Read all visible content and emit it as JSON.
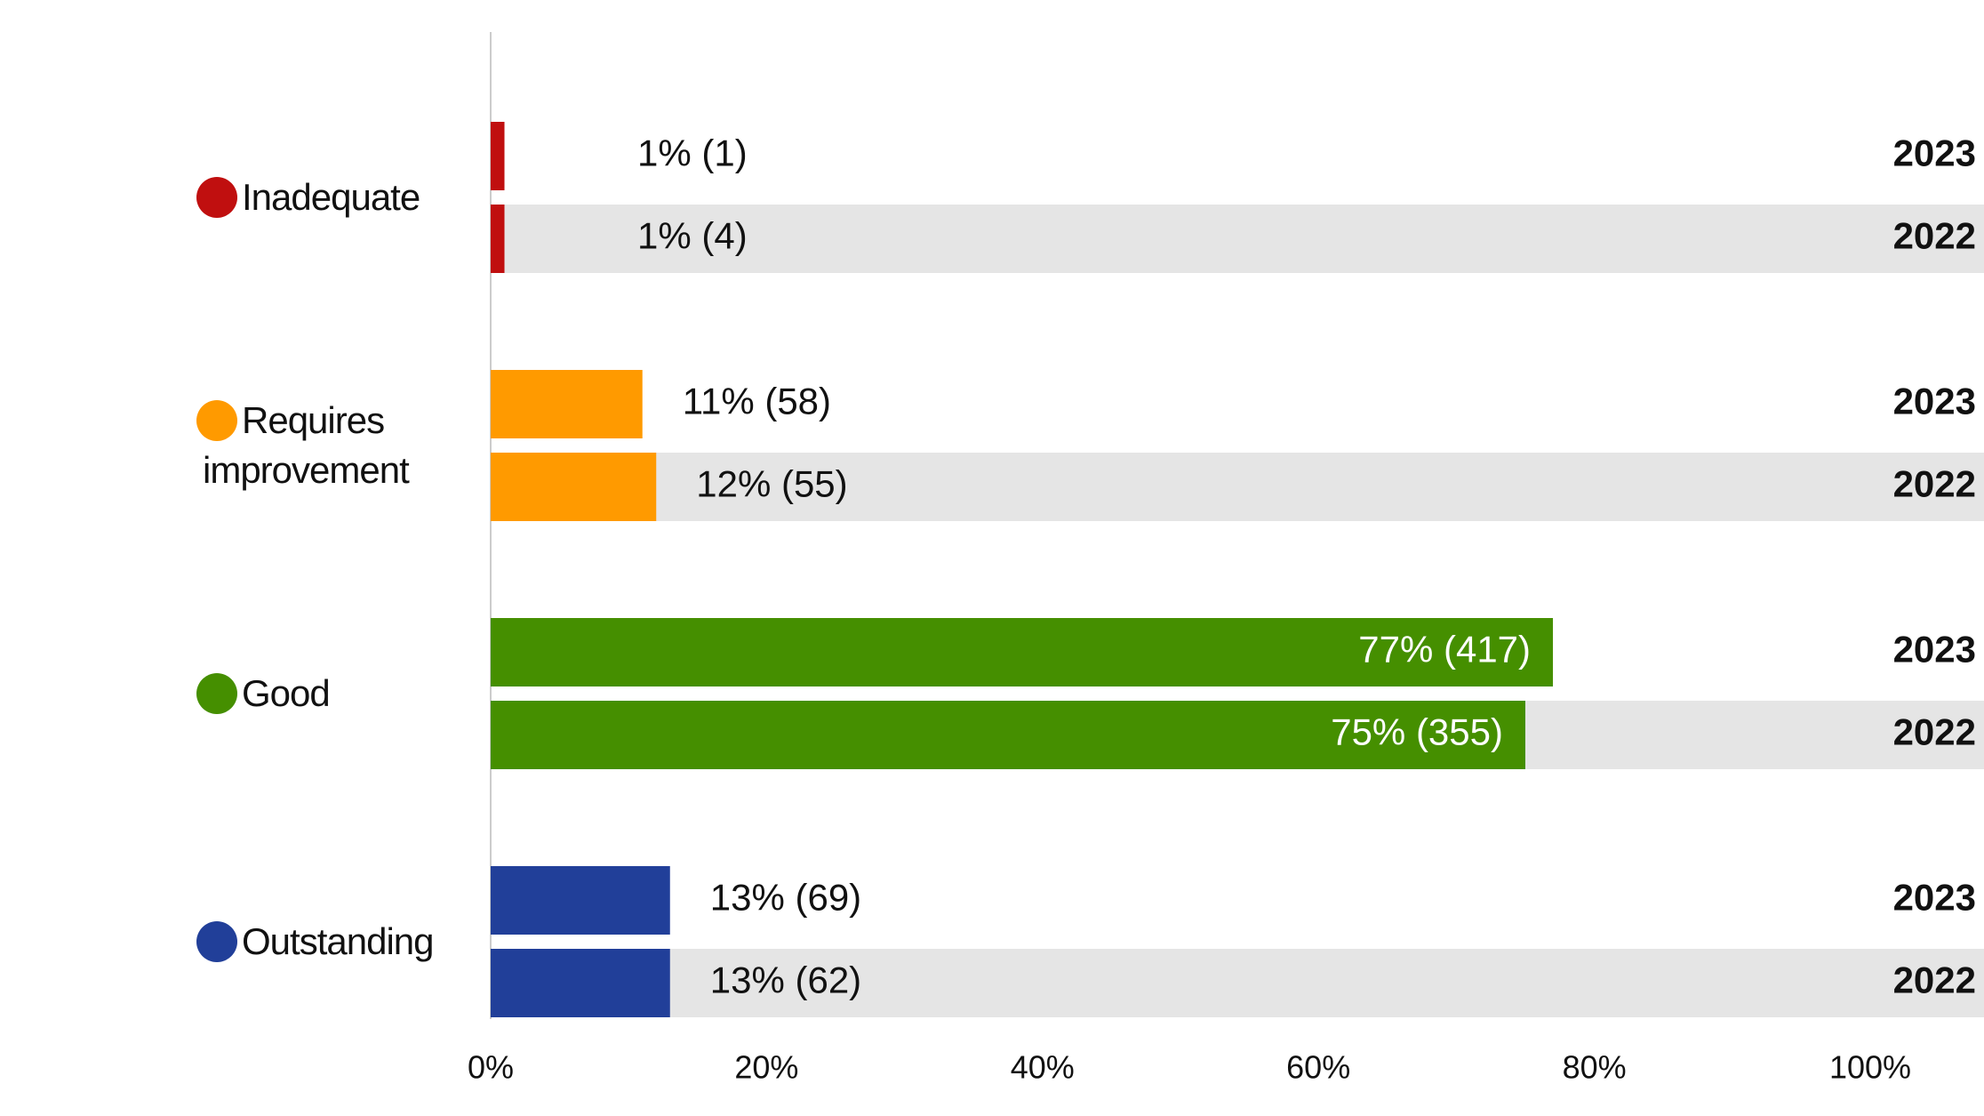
{
  "chart_data": {
    "type": "bar",
    "orientation": "horizontal",
    "categories": [
      "Inadequate",
      "Requires improvement",
      "Good",
      "Outstanding"
    ],
    "colors": [
      "#c00f0f",
      "#ff9a00",
      "#458f00",
      "#213f99"
    ],
    "series": [
      {
        "name": "2023",
        "values": [
          1,
          11,
          77,
          13
        ],
        "value_labels": [
          "1% (1)",
          "11% (58)",
          "77% (417)",
          "13% (69)"
        ]
      },
      {
        "name": "2022",
        "values": [
          1,
          12,
          75,
          13
        ],
        "value_labels": [
          "1% (4)",
          "12% (55)",
          "75% (355)",
          "13% (62)"
        ]
      }
    ],
    "xlim": [
      0,
      100
    ],
    "xticks": [
      {
        "value": 0,
        "label": "0%"
      },
      {
        "value": 20,
        "label": "20%"
      },
      {
        "value": 40,
        "label": "40%"
      },
      {
        "value": 60,
        "label": "60%"
      },
      {
        "value": 80,
        "label": "80%"
      },
      {
        "value": 100,
        "label": "100%"
      }
    ]
  }
}
